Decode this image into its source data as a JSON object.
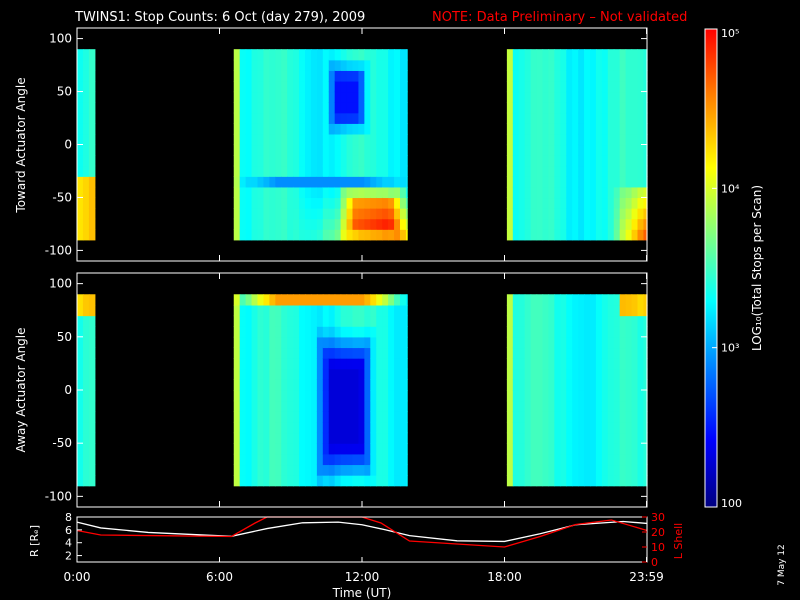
{
  "header": {
    "title": "TWINS1: Stop Counts:  6 Oct (day 279), 2009",
    "note": "NOTE: Data Preliminary – Not validated",
    "note_color": "#ff0000"
  },
  "footer": {
    "stamp": "7 May 12"
  },
  "chart_data": [
    {
      "type": "heatmap",
      "title": "",
      "ylabel": "Toward Actuator Angle",
      "xlabel": "",
      "xlim": [
        0,
        24
      ],
      "ylim": [
        -110,
        110
      ],
      "y_ticks": [
        -100,
        -50,
        0,
        50,
        100
      ],
      "data_y_range": [
        -90,
        90
      ],
      "segments_hours": [
        [
          0.0,
          0.75
        ],
        [
          6.6,
          13.9
        ],
        [
          18.1,
          24.0
        ]
      ],
      "features": [
        {
          "hour_range": [
            10.5,
            12.3
          ],
          "angle_range": [
            10,
            80
          ],
          "level": "low",
          "approx_counts": 300
        },
        {
          "hour_range": [
            6.6,
            13.9
          ],
          "angle_range": [
            -45,
            -25
          ],
          "level": "low",
          "approx_counts": 800
        },
        {
          "hour_range": [
            11.0,
            13.9
          ],
          "angle_range": [
            -90,
            -40
          ],
          "level": "high",
          "approx_counts": 20000
        }
      ]
    },
    {
      "type": "heatmap",
      "title": "",
      "ylabel": "Away Actuator Angle",
      "xlabel": "",
      "xlim": [
        0,
        24
      ],
      "ylim": [
        -110,
        110
      ],
      "y_ticks": [
        -100,
        -50,
        0,
        50,
        100
      ],
      "data_y_range": [
        -90,
        90
      ],
      "segments_hours": [
        [
          0.0,
          0.75
        ],
        [
          6.6,
          13.9
        ],
        [
          18.1,
          24.0
        ]
      ],
      "features": [
        {
          "hour_range": [
            10.0,
            12.6
          ],
          "angle_range": [
            -90,
            60
          ],
          "level": "low",
          "approx_counts": 200
        },
        {
          "hour_range": [
            6.6,
            13.9
          ],
          "angle_range": [
            75,
            90
          ],
          "level": "high",
          "approx_counts": 30000
        }
      ]
    },
    {
      "type": "line",
      "xlabel": "Time (UT)",
      "ylabel_left": "R [Rₑ]",
      "ylabel_right": "L Shell",
      "right_label_color": "#ff0000",
      "xlim": [
        0,
        24
      ],
      "left_ylim": [
        1,
        8
      ],
      "left_ticks": [
        2,
        4,
        6,
        8
      ],
      "right_ylim": [
        0,
        30
      ],
      "right_ticks": [
        0,
        10,
        20,
        30
      ],
      "x_ticks": [
        0,
        6,
        12,
        18,
        23.98
      ],
      "x_tick_labels": [
        "0:00",
        "6:00",
        "12:00",
        "18:00",
        "23:59"
      ],
      "series": [
        {
          "name": "R",
          "color": "#ffffff",
          "axis": "left",
          "x": [
            0,
            1,
            3,
            6.5,
            8,
            9.5,
            11,
            12,
            13,
            14,
            16,
            18,
            19.5,
            21,
            23,
            24
          ],
          "y": [
            7.2,
            6.3,
            5.6,
            5.0,
            6.2,
            7.1,
            7.2,
            6.8,
            6.0,
            5.1,
            4.3,
            4.2,
            5.4,
            6.8,
            7.3,
            7.0
          ]
        },
        {
          "name": "L Shell",
          "color": "#ff0000",
          "axis": "right",
          "x": [
            0,
            1,
            6.5,
            7.5,
            8.0,
            12.0,
            12.8,
            14.0,
            18.0,
            19.5,
            21.0,
            22.5,
            24.0
          ],
          "y": [
            21,
            18,
            17,
            26,
            31,
            31,
            26,
            14,
            10,
            17,
            25,
            28,
            21
          ]
        }
      ]
    }
  ],
  "colorbar": {
    "label": "LOG₁₀(Total Stops per Scan)",
    "tick_values": [
      100,
      1000,
      10000,
      100000
    ],
    "tick_labels": [
      "100",
      "10³",
      "10⁴",
      "10⁵"
    ],
    "range": [
      100,
      100000
    ],
    "scale": "log",
    "stops": [
      "#000080",
      "#0000ff",
      "#0080ff",
      "#00ffff",
      "#80ff80",
      "#ffff00",
      "#ff8000",
      "#ff0000"
    ]
  }
}
